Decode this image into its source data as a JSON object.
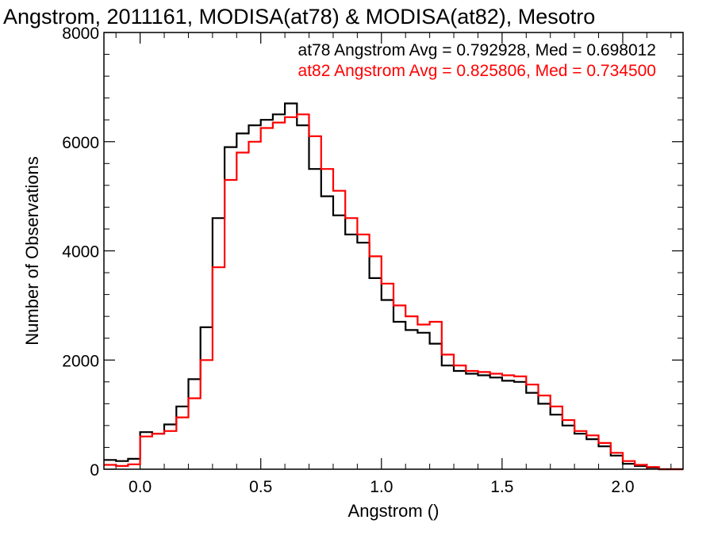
{
  "chart_data": {
    "type": "line",
    "title": "Angstrom, 2011161, MODISA(at78) & MODISA(at82), Mesotro",
    "xlabel": "Angstrom ()",
    "ylabel": "Number of Observations",
    "xlim": [
      -0.15,
      2.25
    ],
    "ylim": [
      0,
      8000
    ],
    "x_ticks": [
      0.0,
      0.5,
      1.0,
      1.5,
      2.0
    ],
    "x_tick_labels": [
      "0.0",
      "0.5",
      "1.0",
      "1.5",
      "2.0"
    ],
    "y_ticks": [
      0,
      2000,
      4000,
      6000,
      8000
    ],
    "y_tick_labels": [
      "0",
      "2000",
      "4000",
      "6000",
      "8000"
    ],
    "grid": false,
    "legend_position": "top-right",
    "series": [
      {
        "name": "at78",
        "label": "at78 Angstrom Avg = 0.792928, Med = 0.698012",
        "color": "#000000",
        "x": [
          -0.15,
          -0.1,
          -0.05,
          0.0,
          0.05,
          0.1,
          0.15,
          0.2,
          0.25,
          0.3,
          0.35,
          0.4,
          0.45,
          0.5,
          0.55,
          0.6,
          0.65,
          0.7,
          0.75,
          0.8,
          0.85,
          0.9,
          0.95,
          1.0,
          1.05,
          1.1,
          1.15,
          1.2,
          1.25,
          1.3,
          1.35,
          1.4,
          1.45,
          1.5,
          1.55,
          1.6,
          1.65,
          1.7,
          1.75,
          1.8,
          1.85,
          1.9,
          1.95,
          2.0,
          2.05,
          2.1,
          2.15
        ],
        "values": [
          170,
          150,
          190,
          680,
          650,
          820,
          1150,
          1650,
          2600,
          4600,
          5900,
          6150,
          6300,
          6400,
          6500,
          6700,
          6300,
          5500,
          5000,
          4650,
          4300,
          4150,
          3500,
          3100,
          2700,
          2550,
          2500,
          2300,
          1900,
          1800,
          1750,
          1720,
          1680,
          1620,
          1600,
          1400,
          1200,
          1000,
          800,
          650,
          550,
          420,
          250,
          100,
          60,
          30,
          0
        ]
      },
      {
        "name": "at82",
        "label": "at82 Angstrom Avg = 0.825806, Med = 0.734500",
        "color": "#ff0000",
        "x": [
          -0.15,
          -0.1,
          -0.05,
          0.0,
          0.05,
          0.1,
          0.15,
          0.2,
          0.25,
          0.3,
          0.35,
          0.4,
          0.45,
          0.5,
          0.55,
          0.6,
          0.65,
          0.7,
          0.75,
          0.8,
          0.85,
          0.9,
          0.95,
          1.0,
          1.05,
          1.1,
          1.15,
          1.2,
          1.25,
          1.3,
          1.35,
          1.4,
          1.45,
          1.5,
          1.55,
          1.6,
          1.65,
          1.7,
          1.75,
          1.8,
          1.85,
          1.9,
          1.95,
          2.0,
          2.05,
          2.1,
          2.15
        ],
        "values": [
          80,
          60,
          90,
          600,
          650,
          700,
          950,
          1300,
          2000,
          3700,
          5300,
          5800,
          6000,
          6250,
          6350,
          6450,
          6500,
          6100,
          5500,
          5100,
          4600,
          4300,
          3900,
          3400,
          3000,
          2800,
          2650,
          2700,
          2100,
          1900,
          1800,
          1780,
          1750,
          1720,
          1700,
          1550,
          1350,
          1150,
          900,
          700,
          620,
          480,
          300,
          150,
          80,
          40,
          0
        ]
      }
    ]
  }
}
